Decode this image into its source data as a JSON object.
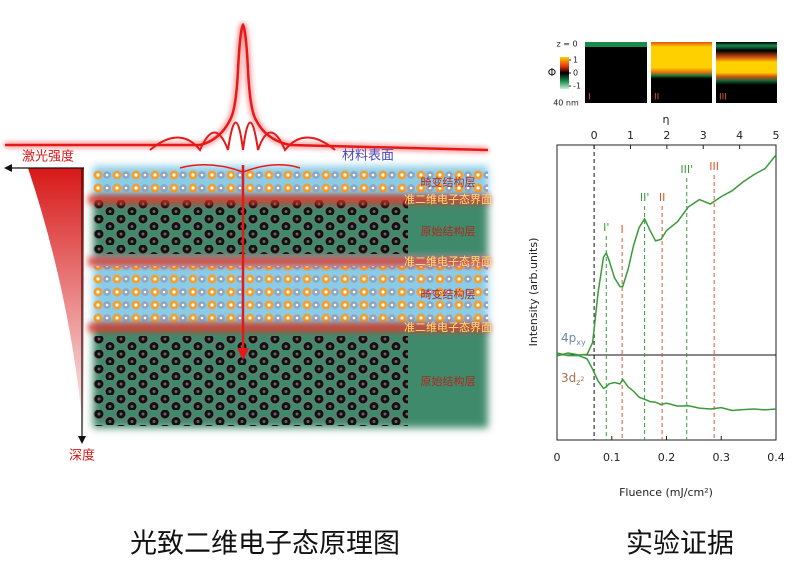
{
  "schematic": {
    "intensity_label": "激光强度",
    "depth_label": "深度",
    "surface_label": "材料表面",
    "layers": [
      "畸变结构层",
      "准二维电子态界面",
      "原始结构层",
      "准二维电子态界面",
      "畸变结构层",
      "准二维电子态界面",
      "原始结构层"
    ],
    "caption": "光致二维电子态原理图"
  },
  "heatmap": {
    "z_top": "z = 0",
    "z_bottom": "40 nm",
    "colorbar_label": "Φ",
    "colorbar_ticks": [
      1,
      0,
      -1
    ],
    "panels": [
      "I",
      "II",
      "III"
    ]
  },
  "chart_data": {
    "type": "line",
    "caption": "实验证据",
    "xlabel": "Fluence (mJ/cm²)",
    "ylabel": "Intensity (arb.units)",
    "x2label": "η",
    "xlim": [
      0,
      0.4
    ],
    "xticks": [
      0,
      0.1,
      0.2,
      0.3,
      0.4
    ],
    "x2lim": [
      -1.02,
      5
    ],
    "x2ticks": [
      0,
      1,
      2,
      3,
      4,
      5
    ],
    "ylim": [
      0,
      100
    ],
    "zero_level": 28.8,
    "x": [
      0,
      0.02,
      0.04,
      0.055,
      0.065,
      0.075,
      0.085,
      0.09,
      0.095,
      0.105,
      0.115,
      0.12,
      0.13,
      0.14,
      0.15,
      0.16,
      0.17,
      0.18,
      0.19,
      0.2,
      0.22,
      0.24,
      0.26,
      0.28,
      0.3,
      0.32,
      0.34,
      0.36,
      0.38,
      0.4
    ],
    "series": [
      {
        "name": "4pxy",
        "color": "#3a9a3a",
        "label_color": "#6a8caa",
        "values": [
          28.5,
          29.5,
          28.8,
          29,
          33,
          50,
          62,
          63.4,
          61,
          55,
          52,
          52,
          58,
          66,
          72,
          75,
          71,
          67.5,
          68,
          71,
          74,
          79,
          81.5,
          80,
          82.5,
          84.5,
          87.5,
          90,
          92,
          96.6
        ]
      },
      {
        "name": "3dz2",
        "color": "#3a9a3a",
        "label_color": "#a07050",
        "values": [
          29.5,
          28.6,
          28.6,
          27.5,
          24,
          20,
          17.5,
          18,
          19,
          19.5,
          19,
          20.5,
          18,
          16.5,
          14.5,
          13.8,
          13,
          12.8,
          12,
          12.5,
          11.5,
          11.6,
          10.8,
          10.5,
          11,
          10,
          10.3,
          10.5,
          10.2,
          10.5
        ]
      }
    ],
    "annotations": [
      {
        "text": "I'",
        "x": 0.09,
        "color": "#3a9a3a"
      },
      {
        "text": "I",
        "x": 0.119,
        "color": "#e0552a"
      },
      {
        "text": "II'",
        "x": 0.16,
        "color": "#3a9a3a"
      },
      {
        "text": "II",
        "x": 0.192,
        "color": "#e0552a"
      },
      {
        "text": "III'",
        "x": 0.237,
        "color": "#3a9a3a"
      },
      {
        "text": "III",
        "x": 0.287,
        "color": "#e0552a"
      }
    ]
  }
}
